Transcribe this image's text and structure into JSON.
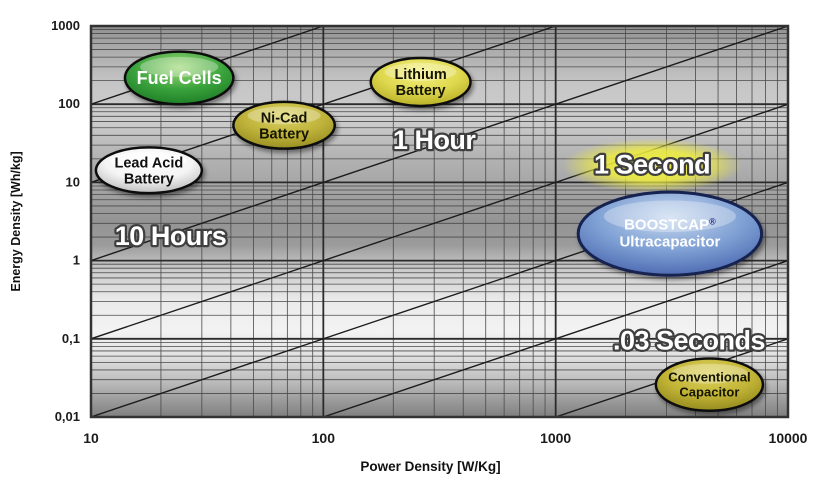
{
  "chart_data": {
    "type": "scatter",
    "variant": "ragone-plot",
    "title": "",
    "xlabel": "Power Density [W/Kg]",
    "ylabel": "Energy Density [Wh/kg]",
    "x_scale": "log",
    "y_scale": "log",
    "xlim": [
      10,
      10000
    ],
    "ylim": [
      0.01,
      1000
    ],
    "x_ticks": [
      {
        "label": "10",
        "value": 10
      },
      {
        "label": "100",
        "value": 100
      },
      {
        "label": "1000",
        "value": 1000
      },
      {
        "label": "10000",
        "value": 10000
      }
    ],
    "y_ticks": [
      {
        "label": "1000",
        "value": 1000
      },
      {
        "label": "100",
        "value": 100
      },
      {
        "label": "10",
        "value": 10
      },
      {
        "label": "1",
        "value": 1
      },
      {
        "label": "0,1",
        "value": 0.1
      },
      {
        "label": "0,01",
        "value": 0.01
      }
    ],
    "grid": {
      "major": true,
      "log_minor": true
    },
    "technologies": [
      {
        "id": "fuel-cells",
        "label_lines": [
          "Fuel Cells"
        ],
        "power_W_per_kg": [
          14,
          41
        ],
        "energy_Wh_per_kg": [
          100,
          470
        ],
        "theme": {
          "top": "#a6dc7e",
          "mid": "#3aa33c",
          "edge": "#1c7a24",
          "stroke": "#101010",
          "text": "#ffffff"
        }
      },
      {
        "id": "lithium-battery",
        "label_lines": [
          "Lithium",
          "Battery"
        ],
        "power_W_per_kg": [
          160,
          430
        ],
        "energy_Wh_per_kg": [
          95,
          390
        ],
        "theme": {
          "top": "#f6f282",
          "mid": "#ddd74d",
          "edge": "#b3a922",
          "stroke": "#101010",
          "text": "#141400"
        }
      },
      {
        "id": "ni-cad-battery",
        "label_lines": [
          "Ni-Cad",
          "Battery"
        ],
        "power_W_per_kg": [
          41,
          112
        ],
        "energy_Wh_per_kg": [
          27,
          107
        ],
        "theme": {
          "top": "#dcd363",
          "mid": "#beb23a",
          "edge": "#93891e",
          "stroke": "#101010",
          "text": "#141400"
        }
      },
      {
        "id": "lead-acid-battery",
        "label_lines": [
          "Lead Acid",
          "Battery"
        ],
        "power_W_per_kg": [
          10.5,
          30
        ],
        "energy_Wh_per_kg": [
          7.3,
          28
        ],
        "theme": {
          "top": "#ffffff",
          "mid": "#f4f4f4",
          "edge": "#b5b5b5",
          "stroke": "#101010",
          "text": "#101010"
        }
      },
      {
        "id": "boostcap-ultracapacitor",
        "label_lines": [
          "BOOSTCAP",
          "Ultracapacitor"
        ],
        "superscript": "®",
        "superscript_color": "#2b2b8a",
        "power_W_per_kg": [
          1250,
          7700
        ],
        "energy_Wh_per_kg": [
          0.65,
          7.5
        ],
        "theme": {
          "top": "#c9daf0",
          "mid": "#7d9fd3",
          "edge": "#4763ad",
          "stroke": "#17224f",
          "text": "#ffffff"
        }
      },
      {
        "id": "conventional-capacitor",
        "label_lines": [
          "Conventional",
          "Capacitor"
        ],
        "power_W_per_kg": [
          2700,
          7800
        ],
        "energy_Wh_per_kg": [
          0.012,
          0.056
        ],
        "theme": {
          "top": "#ded35e",
          "mid": "#c1b335",
          "edge": "#8e841c",
          "stroke": "#101010",
          "text": "#141400"
        }
      }
    ],
    "time_constant_lines_hours": [
      10,
      1,
      0.1,
      0.01,
      0.001,
      0.0001,
      1e-05
    ],
    "time_labels": [
      {
        "text": "10 Hours",
        "at_power": 22,
        "at_energy": 2.05,
        "highlight": false
      },
      {
        "text": "1 Hour",
        "at_power": 300,
        "at_energy": 35,
        "highlight": false
      },
      {
        "text": "1 Second",
        "at_power": 2600,
        "at_energy": 17,
        "highlight": true,
        "highlight_color": "#f0ee3e"
      },
      {
        "text": ".03 Seconds",
        "at_power": 3750,
        "at_energy": 0.095,
        "highlight": false
      }
    ],
    "colors": {
      "plot_border": "#333333",
      "grid_major": "#2b2b2b",
      "grid_minor": "#4a4a4a",
      "diagonal_line": "#1c1c1c",
      "time_label_fill": "#ffffff",
      "time_label_outline": "#3f3f3f",
      "tick_text": "#1b1b1b",
      "axis_title_text": "#111111"
    }
  }
}
